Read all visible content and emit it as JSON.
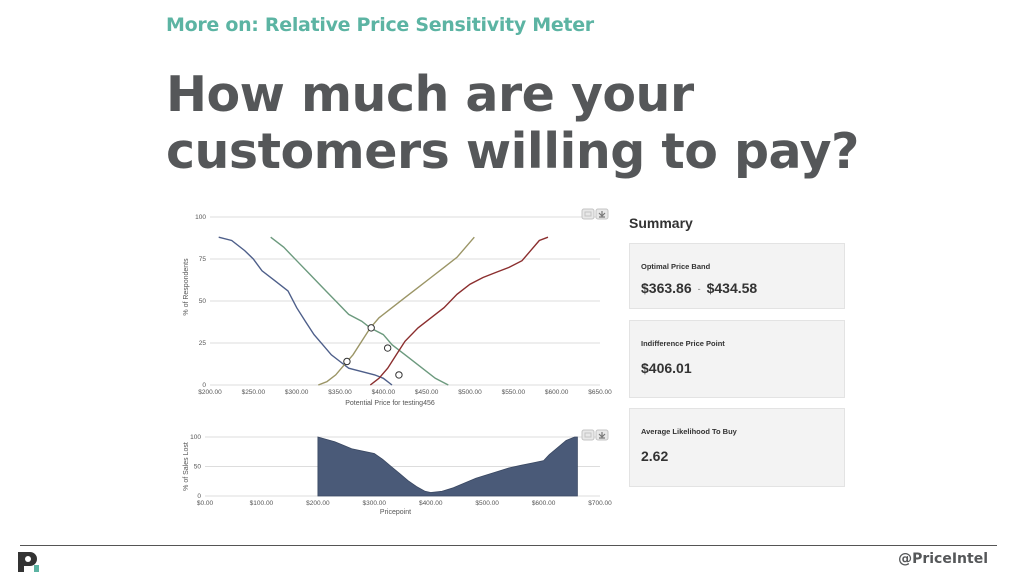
{
  "header": {
    "kicker": "More on: Relative Price Sensitivity Meter",
    "headline_line1": "How much are your",
    "headline_line2": "customers willing to pay?"
  },
  "chart_data": [
    {
      "type": "line",
      "xlabel": "Potential Price for testing456",
      "ylabel": "% of Respondents",
      "xlim": [
        200,
        650
      ],
      "ylim": [
        0,
        100
      ],
      "x_ticks": [
        "$200.00",
        "$250.00",
        "$300.00",
        "$350.00",
        "$400.00",
        "$450.00",
        "$500.00",
        "$550.00",
        "$600.00",
        "$650.00"
      ],
      "y_ticks": [
        "0",
        "25",
        "50",
        "75",
        "100"
      ],
      "grid": true,
      "series": [
        {
          "color": "#4e5f8a",
          "points": [
            [
              210,
              88
            ],
            [
              225,
              86
            ],
            [
              240,
              80
            ],
            [
              250,
              75
            ],
            [
              260,
              68
            ],
            [
              275,
              62
            ],
            [
              290,
              56
            ],
            [
              300,
              46
            ],
            [
              310,
              38
            ],
            [
              320,
              30
            ],
            [
              330,
              24
            ],
            [
              340,
              18
            ],
            [
              350,
              14
            ],
            [
              360,
              10
            ],
            [
              375,
              8
            ],
            [
              390,
              6
            ],
            [
              400,
              4
            ],
            [
              410,
              0
            ]
          ]
        },
        {
          "color": "#6c9a7e",
          "points": [
            [
              270,
              88
            ],
            [
              285,
              82
            ],
            [
              300,
              74
            ],
            [
              315,
              66
            ],
            [
              330,
              58
            ],
            [
              345,
              50
            ],
            [
              360,
              42
            ],
            [
              375,
              38
            ],
            [
              385,
              34
            ],
            [
              400,
              30
            ],
            [
              410,
              24
            ],
            [
              420,
              20
            ],
            [
              430,
              16
            ],
            [
              445,
              10
            ],
            [
              460,
              4
            ],
            [
              475,
              0
            ]
          ]
        },
        {
          "color": "#9b9566",
          "points": [
            [
              325,
              0
            ],
            [
              335,
              2
            ],
            [
              345,
              6
            ],
            [
              355,
              12
            ],
            [
              365,
              18
            ],
            [
              375,
              26
            ],
            [
              385,
              34
            ],
            [
              395,
              40
            ],
            [
              410,
              46
            ],
            [
              425,
              52
            ],
            [
              440,
              58
            ],
            [
              455,
              64
            ],
            [
              470,
              70
            ],
            [
              485,
              76
            ],
            [
              495,
              82
            ],
            [
              505,
              88
            ]
          ]
        },
        {
          "color": "#8b2e2e",
          "points": [
            [
              385,
              0
            ],
            [
              395,
              4
            ],
            [
              405,
              10
            ],
            [
              415,
              18
            ],
            [
              425,
              26
            ],
            [
              440,
              34
            ],
            [
              455,
              40
            ],
            [
              470,
              46
            ],
            [
              485,
              54
            ],
            [
              500,
              60
            ],
            [
              515,
              64
            ],
            [
              530,
              67
            ],
            [
              545,
              70
            ],
            [
              560,
              74
            ],
            [
              570,
              80
            ],
            [
              580,
              86
            ],
            [
              590,
              88
            ]
          ]
        }
      ],
      "intersections": [
        [
          358,
          14
        ],
        [
          386,
          34
        ],
        [
          405,
          22
        ],
        [
          418,
          6
        ]
      ]
    },
    {
      "type": "area",
      "xlabel": "Pricepoint",
      "ylabel": "% of Sales Lost",
      "xlim": [
        0,
        700
      ],
      "ylim": [
        0,
        100
      ],
      "x_ticks": [
        "$0.00",
        "$100.00",
        "$200.00",
        "$300.00",
        "$400.00",
        "$500.00",
        "$600.00",
        "$700.00"
      ],
      "y_ticks": [
        "0",
        "50",
        "100"
      ],
      "grid": true,
      "color": "#4a5a78",
      "points": [
        [
          200,
          100
        ],
        [
          215,
          96
        ],
        [
          230,
          92
        ],
        [
          245,
          86
        ],
        [
          260,
          80
        ],
        [
          280,
          76
        ],
        [
          300,
          72
        ],
        [
          315,
          62
        ],
        [
          330,
          50
        ],
        [
          345,
          38
        ],
        [
          360,
          26
        ],
        [
          375,
          16
        ],
        [
          390,
          8
        ],
        [
          400,
          6
        ],
        [
          420,
          8
        ],
        [
          440,
          14
        ],
        [
          460,
          22
        ],
        [
          480,
          30
        ],
        [
          500,
          36
        ],
        [
          520,
          42
        ],
        [
          540,
          48
        ],
        [
          560,
          52
        ],
        [
          580,
          56
        ],
        [
          600,
          60
        ],
        [
          610,
          70
        ],
        [
          625,
          82
        ],
        [
          640,
          94
        ],
        [
          655,
          100
        ],
        [
          660,
          100
        ]
      ]
    }
  ],
  "summary": {
    "title": "Summary",
    "cards": [
      {
        "label": "Optimal Price Band",
        "value_low": "$363.86",
        "separator": "-",
        "value_high": "$434.58"
      },
      {
        "label": "Indifference Price Point",
        "value": "$406.01"
      },
      {
        "label": "Average Likelihood To Buy",
        "value": "2.62"
      }
    ]
  },
  "footer": {
    "handle": "@PriceIntel"
  }
}
